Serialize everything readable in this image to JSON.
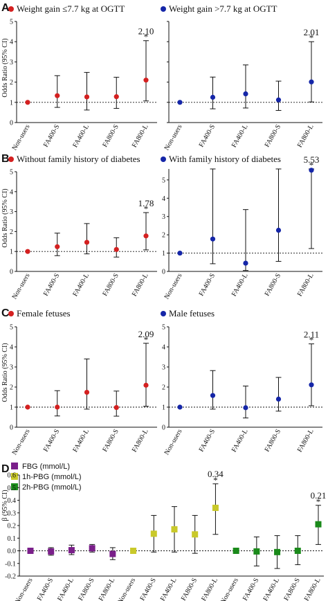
{
  "chart_data": [
    {
      "panel": "A",
      "type": "scatter",
      "title": "Weight gain ≤7.7 kg at OGTT",
      "categories": [
        "Non-users",
        "FA400-S",
        "FA400-L",
        "FA800-S",
        "FA800-L"
      ],
      "values": [
        1.0,
        1.33,
        1.27,
        1.28,
        2.1
      ],
      "ci_low": [
        1.0,
        0.75,
        0.62,
        0.7,
        1.07
      ],
      "ci_high": [
        1.0,
        2.32,
        2.48,
        2.24,
        4.05
      ],
      "annotation": {
        "index": 4,
        "text": "2.10",
        "star": "*"
      },
      "ylabel": "Odds Ratio (95% CI)",
      "ylim": [
        0,
        5
      ],
      "yticks": [
        "0",
        "1",
        "2",
        "3",
        "4",
        "5"
      ],
      "reference_line": 1,
      "color": "#d42020"
    },
    {
      "panel": "",
      "type": "scatter",
      "title": "Weight gain >7.7 kg at OGTT",
      "categories": [
        "Non-users",
        "FA400-S",
        "FA400-L",
        "FA800-S",
        "FA800-L"
      ],
      "values": [
        1.0,
        1.25,
        1.42,
        1.12,
        2.01
      ],
      "ci_low": [
        1.0,
        0.68,
        0.72,
        0.6,
        1.02
      ],
      "ci_high": [
        1.0,
        2.25,
        2.85,
        2.05,
        4.0
      ],
      "annotation": {
        "index": 4,
        "text": "2.01",
        "star": "*"
      },
      "ylabel": "",
      "ylim": [
        0,
        5
      ],
      "yticks": [],
      "reference_line": 1,
      "color": "#1526a8"
    },
    {
      "panel": "B",
      "type": "scatter",
      "title": "Without family history of diabetes",
      "categories": [
        "Non-users",
        "FA400-S",
        "FA400-L",
        "FA800-S",
        "FA800-L"
      ],
      "values": [
        1.0,
        1.24,
        1.46,
        1.1,
        1.78
      ],
      "ci_low": [
        1.0,
        0.79,
        0.88,
        0.72,
        1.08
      ],
      "ci_high": [
        1.0,
        1.92,
        2.4,
        1.69,
        2.95
      ],
      "annotation": {
        "index": 4,
        "text": "1.78",
        "star": "*"
      },
      "ylabel": "Odds Ratio (95% CI)",
      "ylim": [
        0,
        5
      ],
      "yticks": [
        "0",
        "1",
        "2",
        "3",
        "4",
        "5"
      ],
      "reference_line": 1,
      "color": "#d42020"
    },
    {
      "panel": "",
      "type": "scatter",
      "title": "With family history of diabetes",
      "categories": [
        "Non-users",
        "FA400-S",
        "FA400-L",
        "FA800-S",
        "FA800-L"
      ],
      "values": [
        1.0,
        1.77,
        0.45,
        2.25,
        5.53
      ],
      "ci_low": [
        1.0,
        0.42,
        0.05,
        0.55,
        1.25
      ],
      "ci_high": [
        1.0,
        5.6,
        3.38,
        5.6,
        5.6
      ],
      "annotation": {
        "index": 4,
        "text": "5.53",
        "star": "*"
      },
      "ylabel": "",
      "ylim": [
        0,
        5.6
      ],
      "yticks": [
        "0",
        "1",
        "2",
        "3",
        "4",
        "5"
      ],
      "reference_line": 1,
      "color": "#1526a8"
    },
    {
      "panel": "C",
      "type": "scatter",
      "title": "Female fetuses",
      "categories": [
        "Non-users",
        "FA400-S",
        "FA400-L",
        "FA800-S",
        "FA800-L"
      ],
      "values": [
        1.0,
        1.0,
        1.74,
        0.98,
        2.09
      ],
      "ci_low": [
        1.0,
        0.56,
        0.9,
        0.55,
        1.04
      ],
      "ci_high": [
        1.0,
        1.82,
        3.4,
        1.8,
        4.18
      ],
      "annotation": {
        "index": 4,
        "text": "2.09",
        "star": "*"
      },
      "ylabel": "Odds Ratio (95% CI)",
      "ylim": [
        0,
        5
      ],
      "yticks": [
        "0",
        "1",
        "2",
        "3",
        "4",
        "5"
      ],
      "reference_line": 1,
      "color": "#d42020"
    },
    {
      "panel": "",
      "type": "scatter",
      "title": "Male fetuses",
      "categories": [
        "Non-users",
        "FA400-S",
        "FA400-L",
        "FA800-S",
        "FA800-L"
      ],
      "values": [
        1.0,
        1.58,
        0.97,
        1.4,
        2.11
      ],
      "ci_low": [
        1.0,
        0.9,
        0.46,
        0.8,
        1.07
      ],
      "ci_high": [
        1.0,
        2.82,
        2.05,
        2.48,
        4.15
      ],
      "annotation": {
        "index": 4,
        "text": "2.11",
        "star": "*"
      },
      "ylabel": "",
      "ylim": [
        0,
        5
      ],
      "yticks": [
        "0",
        "1",
        "2",
        "3",
        "4",
        "5"
      ],
      "reference_line": 1,
      "color": "#1526a8"
    },
    {
      "panel": "D",
      "type": "scatter",
      "legend": [
        {
          "label": "FBG (mmol/L)",
          "color": "#7a1f8a"
        },
        {
          "label": "1h-PBG (mmol/L)",
          "color": "#c9c92a"
        },
        {
          "label": "2h-PBG (mmol/L)",
          "color": "#1a8a1a"
        }
      ],
      "categories": [
        "Non-users",
        "FA400-S",
        "FA400-L",
        "FA800-S",
        "FA800-L",
        "Non-users",
        "FA400-S",
        "FA400-L",
        "FA800-S",
        "FA800-L",
        "Non-users",
        "FA400-S",
        "FA400-L",
        "FA800-S",
        "FA800-L"
      ],
      "series_index": [
        0,
        0,
        0,
        0,
        0,
        1,
        1,
        1,
        1,
        1,
        2,
        2,
        2,
        2,
        2
      ],
      "values": [
        0.0,
        -0.005,
        0.005,
        0.02,
        -0.025,
        0.0,
        0.135,
        0.17,
        0.13,
        0.34,
        0.0,
        -0.005,
        -0.01,
        0.0,
        0.21
      ],
      "ci_low": [
        0.0,
        -0.035,
        -0.03,
        -0.01,
        -0.07,
        0.0,
        -0.01,
        -0.01,
        -0.02,
        0.13,
        0.0,
        -0.12,
        -0.14,
        -0.11,
        0.05
      ],
      "ci_high": [
        0.0,
        0.025,
        0.045,
        0.05,
        0.025,
        0.0,
        0.28,
        0.35,
        0.28,
        0.53,
        0.0,
        0.11,
        0.12,
        0.12,
        0.36
      ],
      "annotations": [
        {
          "index": 9,
          "text": "0.34",
          "star": "*"
        },
        {
          "index": 14,
          "text": "0.21",
          "star": "*"
        }
      ],
      "ylabel": "β (95% CI)",
      "ylim": [
        -0.2,
        0.6
      ],
      "yticks": [
        "-0.2",
        "-0.1",
        "0.0",
        "0.1",
        "0.2",
        "0.3",
        "0.4",
        "0.5",
        "0.6"
      ],
      "reference_line": 0
    }
  ]
}
